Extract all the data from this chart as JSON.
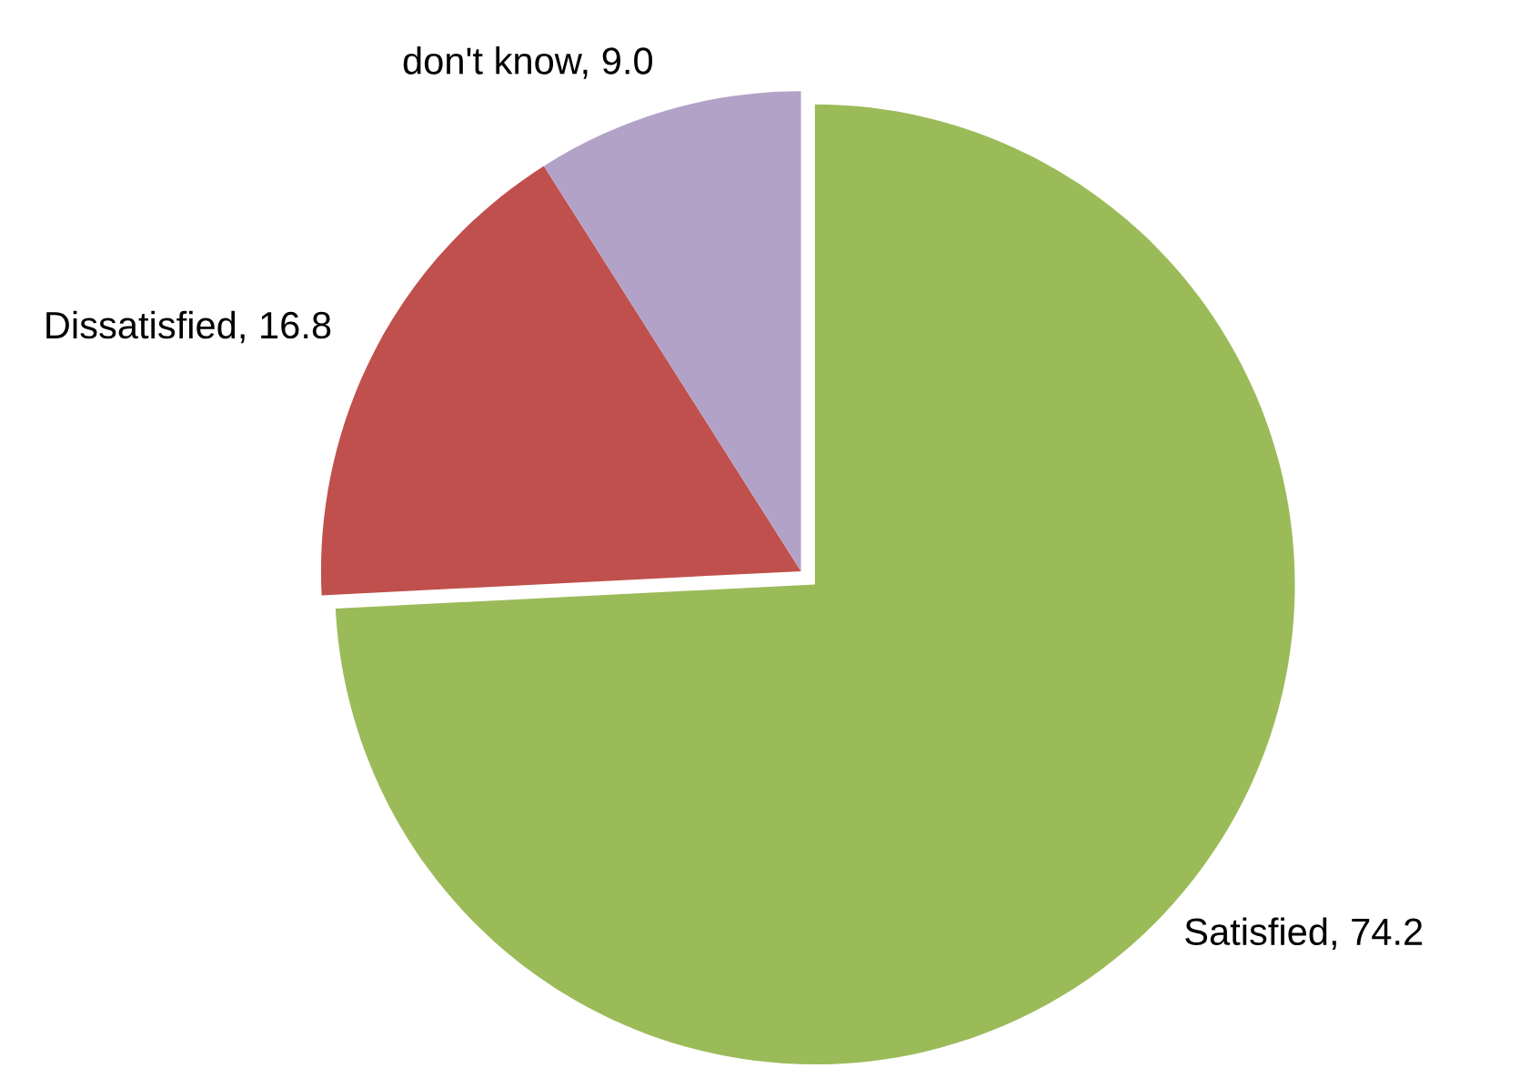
{
  "chart_data": {
    "type": "pie",
    "categories": [
      "Satisfied",
      "Dissatisfied",
      "don't know"
    ],
    "values": [
      74.2,
      16.8,
      9.0
    ],
    "value_labels": [
      "74.2",
      "16.8",
      "9.0"
    ],
    "colors": [
      "#9bbb59",
      "#c0504d",
      "#b3a2c7"
    ]
  }
}
